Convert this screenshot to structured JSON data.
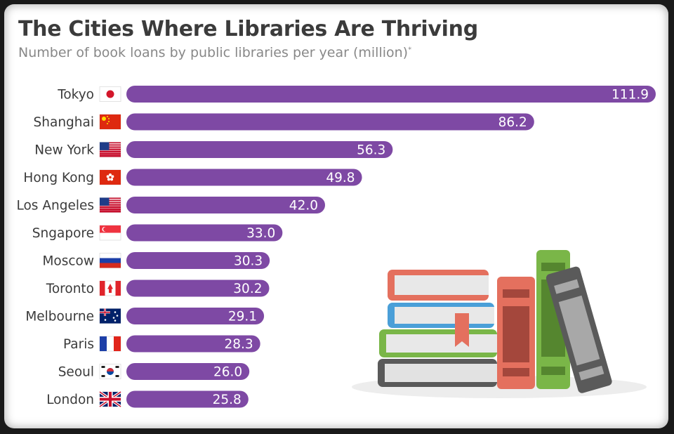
{
  "title": "The Cities Where Libraries Are Thriving",
  "subtitle": "Number of book loans by public libraries per year (million)",
  "subtitle_mark": "*",
  "colors": {
    "bar": "#7e49a4",
    "title": "#3b3b3b",
    "subtitle": "#888888"
  },
  "chart_data": {
    "type": "bar",
    "orientation": "horizontal",
    "title": "The Cities Where Libraries Are Thriving",
    "subtitle": "Number of book loans by public libraries per year (million)",
    "xlabel": "",
    "ylabel": "",
    "xlim": [
      0,
      111.9
    ],
    "grid": false,
    "categories": [
      "Tokyo",
      "Shanghai",
      "New York",
      "Hong Kong",
      "Los Angeles",
      "Sngapore",
      "Moscow",
      "Toronto",
      "Melbourne",
      "Paris",
      "Seoul",
      "London"
    ],
    "values": [
      111.9,
      86.2,
      56.3,
      49.8,
      42.0,
      33.0,
      30.3,
      30.2,
      29.1,
      28.3,
      26.0,
      25.8
    ],
    "value_labels": [
      "111.9",
      "86.2",
      "56.3",
      "49.8",
      "42.0",
      "33.0",
      "30.3",
      "30.2",
      "29.1",
      "28.3",
      "26.0",
      "25.8"
    ],
    "flags": [
      "japan-flag-icon",
      "china-flag-icon",
      "usa-flag-icon",
      "hong-kong-flag-icon",
      "usa-flag-icon",
      "singapore-flag-icon",
      "russia-flag-icon",
      "canada-flag-icon",
      "australia-flag-icon",
      "france-flag-icon",
      "south-korea-flag-icon",
      "uk-flag-icon"
    ]
  }
}
